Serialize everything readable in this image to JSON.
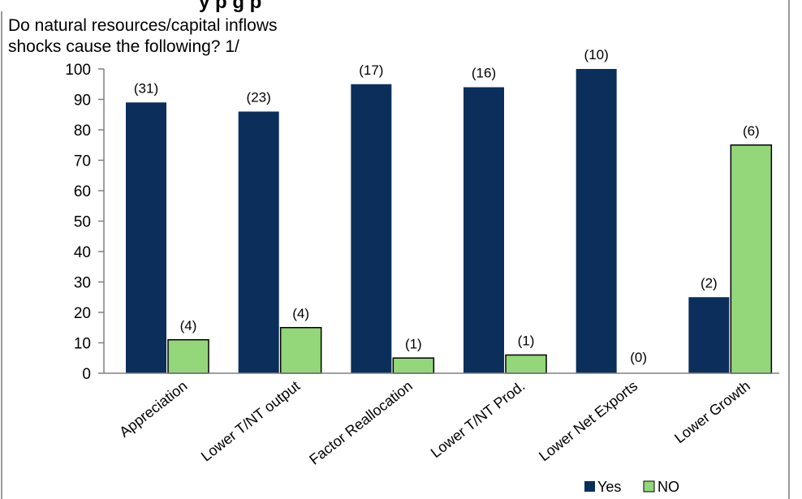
{
  "header_cut": "y     p                    g          p",
  "chart_data": {
    "type": "bar",
    "title_lines": [
      "Do natural resources/capital inflows",
      "shocks cause the following? 1/"
    ],
    "categories": [
      "Appreciation",
      "Lower T/NT output",
      "Factor Reallocation",
      "Lower T/NT Prod.",
      "Lower Net Exports",
      "Lower Growth"
    ],
    "series": [
      {
        "name": "Yes",
        "color": "#0b2f5a",
        "values": [
          89,
          86,
          95,
          94,
          100,
          25
        ],
        "labels": [
          "(31)",
          "(23)",
          "(17)",
          "(16)",
          "(10)",
          "(2)"
        ]
      },
      {
        "name": "NO",
        "color": "#93d77a",
        "values": [
          11,
          15,
          5,
          6,
          0,
          75
        ],
        "labels": [
          "(4)",
          "(4)",
          "(1)",
          "(1)",
          "(0)",
          "(6)"
        ]
      }
    ],
    "ylim": [
      0,
      100
    ],
    "yticks": [
      "0",
      "10",
      "20",
      "30",
      "40",
      "50",
      "60",
      "70",
      "80",
      "90",
      "100"
    ],
    "legend_position": "bottom-right",
    "grid": false
  }
}
